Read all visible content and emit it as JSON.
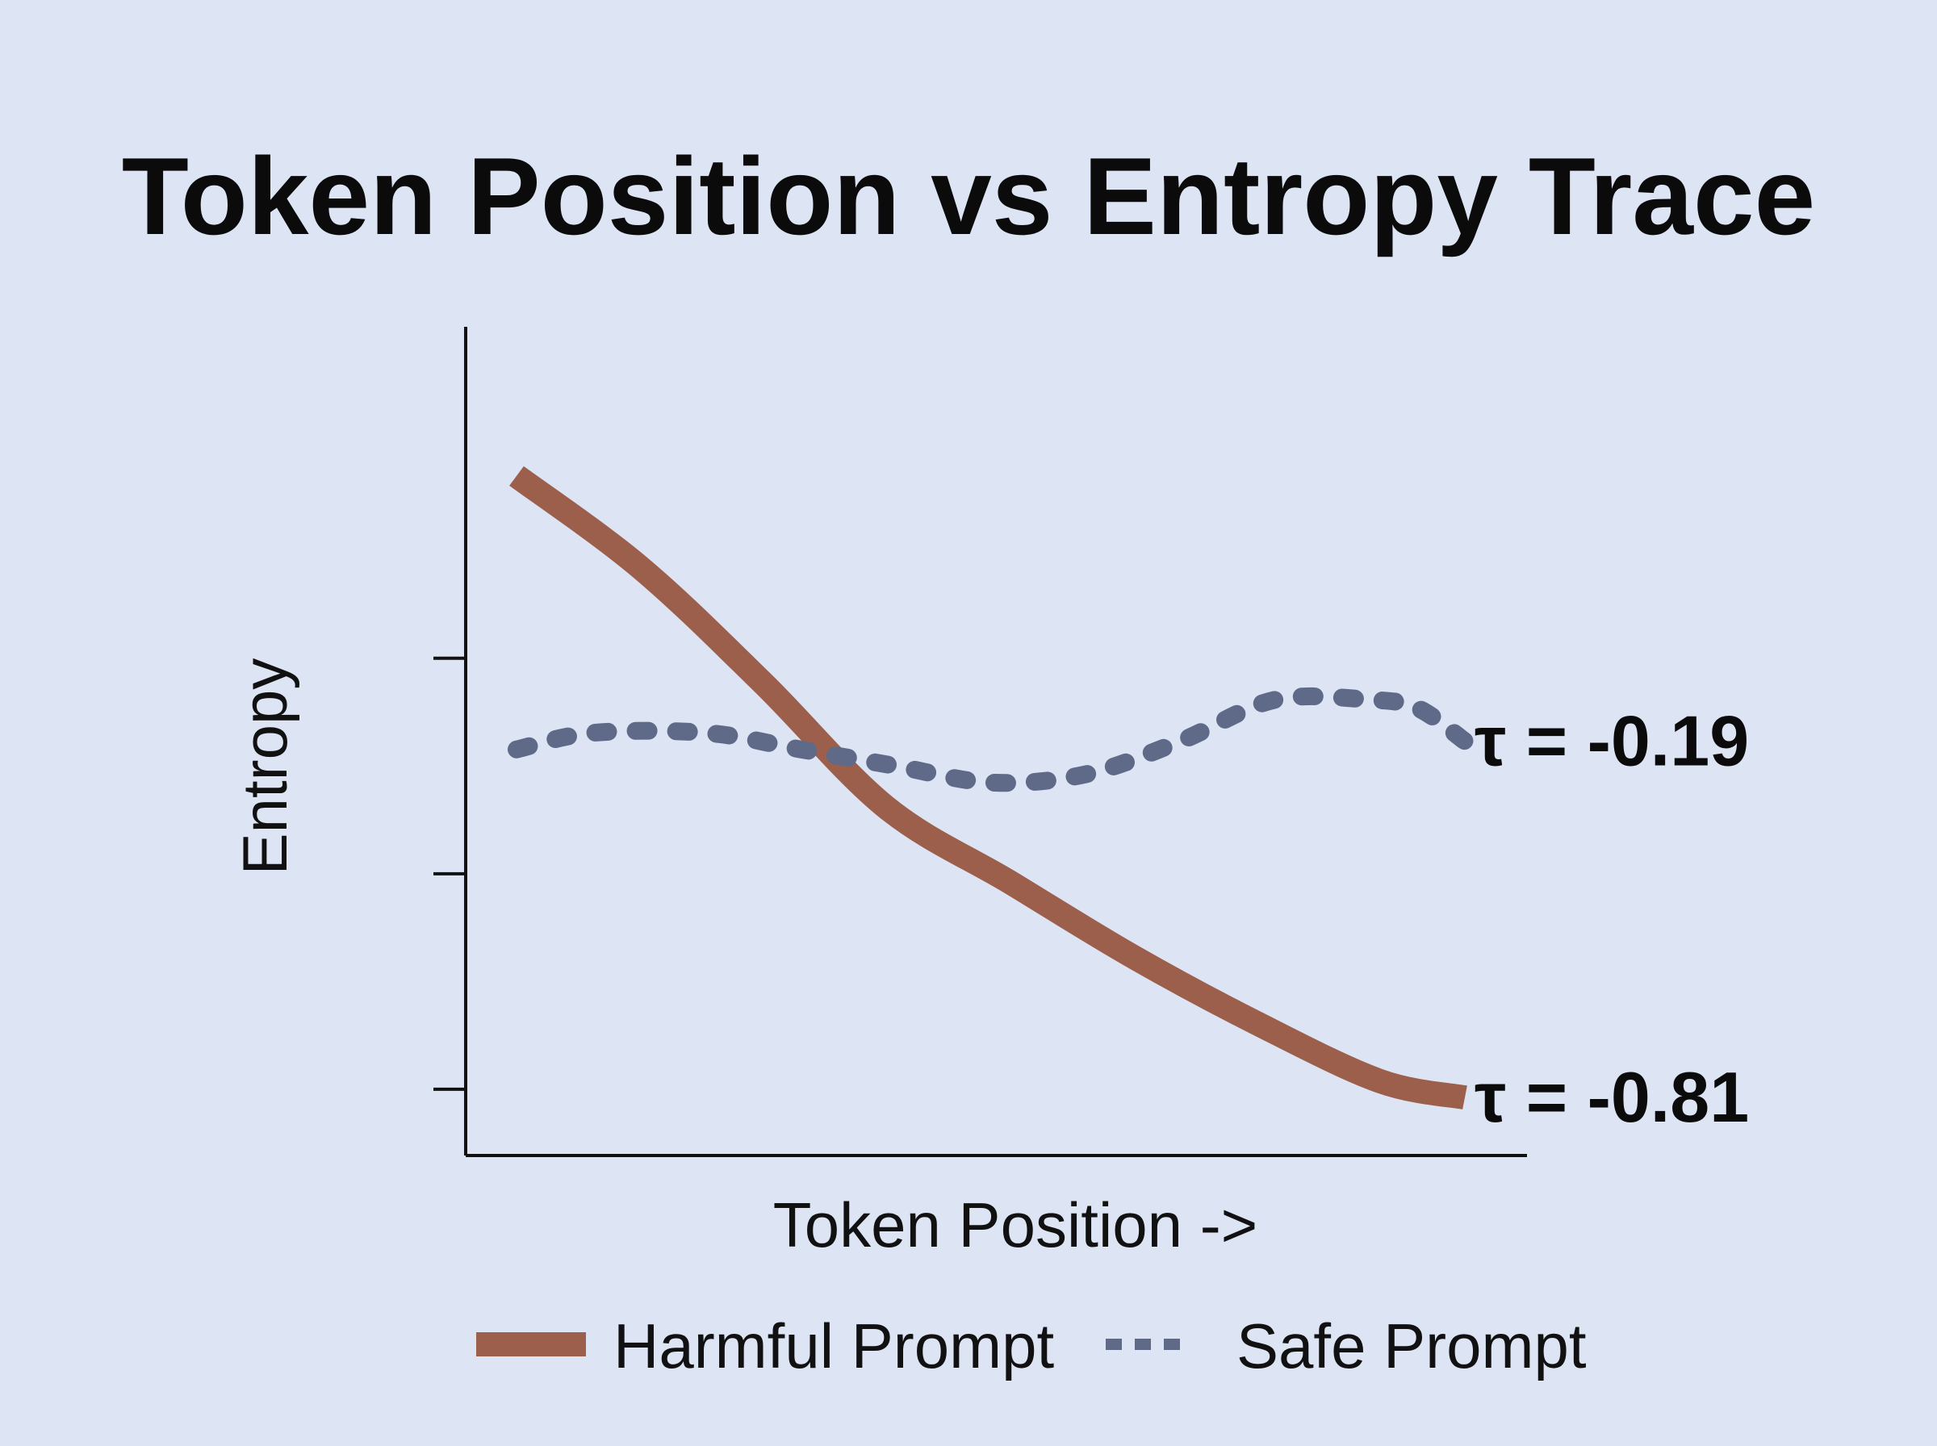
{
  "chart_data": {
    "type": "line",
    "title": "Token Position vs Entropy Trace",
    "xlabel": "Token Position ->",
    "ylabel": "Entropy",
    "xlim": [
      0,
      1
    ],
    "ylim": [
      0,
      1
    ],
    "grid": false,
    "legend_position": "bottom",
    "y_ticks": [
      0.08,
      0.34,
      0.6
    ],
    "series": [
      {
        "name": "Harmful Prompt",
        "style": "solid",
        "color": "#9c5f4c",
        "annotation": "τ = -0.81",
        "x": [
          0,
          0.13,
          0.26,
          0.39,
          0.52,
          0.65,
          0.78,
          0.91,
          1.0
        ],
        "y": [
          0.82,
          0.71,
          0.57,
          0.42,
          0.33,
          0.24,
          0.16,
          0.09,
          0.07
        ]
      },
      {
        "name": "Safe Prompt",
        "style": "dotted",
        "color": "#5e6a88",
        "annotation": "τ = -0.19",
        "x": [
          0,
          0.08,
          0.2,
          0.3,
          0.4,
          0.5,
          0.6,
          0.7,
          0.8,
          0.9,
          0.95,
          1.0
        ],
        "y": [
          0.49,
          0.51,
          0.51,
          0.49,
          0.47,
          0.45,
          0.46,
          0.5,
          0.55,
          0.55,
          0.54,
          0.5
        ]
      }
    ]
  },
  "colors": {
    "background": "#dde5f4",
    "axis": "#111111"
  }
}
